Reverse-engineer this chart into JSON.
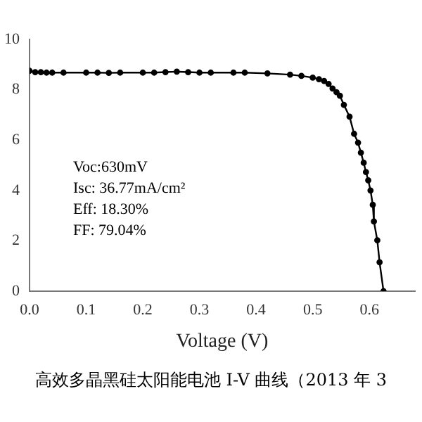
{
  "chart_data": {
    "type": "line",
    "xlabel": "Voltage (V)",
    "annotations": [
      "Voc:630mV",
      "Isc: 36.77mA/cm²",
      "Eff: 18.30%",
      "FF: 79.04%",
      "高效多晶黑硅太阳能电池 I-V 曲线（2013 年 3"
    ],
    "x": [
      0.0,
      0.01,
      0.02,
      0.03,
      0.04,
      0.06,
      0.1,
      0.12,
      0.14,
      0.16,
      0.2,
      0.22,
      0.24,
      0.26,
      0.28,
      0.3,
      0.32,
      0.36,
      0.38,
      0.42,
      0.46,
      0.48,
      0.5,
      0.511,
      0.52,
      0.528,
      0.535,
      0.542,
      0.548,
      0.555,
      0.565,
      0.573,
      0.58,
      0.585,
      0.59,
      0.594,
      0.598,
      0.602,
      0.606,
      0.608,
      0.614,
      0.618,
      0.625
    ],
    "series": [
      {
        "color": "#000000",
        "values": [
          8.75,
          8.7,
          8.7,
          8.68,
          8.68,
          8.68,
          8.68,
          8.68,
          8.67,
          8.68,
          8.68,
          8.68,
          8.7,
          8.72,
          8.7,
          8.68,
          8.68,
          8.68,
          8.68,
          8.65,
          8.6,
          8.55,
          8.48,
          8.42,
          8.35,
          8.23,
          8.05,
          7.9,
          7.76,
          7.4,
          6.93,
          6.25,
          5.9,
          5.5,
          5.1,
          4.73,
          4.4,
          4.0,
          3.43,
          2.77,
          2.02,
          1.15,
          0.0
        ]
      }
    ],
    "xlim": [
      0,
      0.68
    ],
    "xticks": [
      {
        "value": 0,
        "label": "0.0"
      },
      {
        "value": 0.1,
        "label": "0.1"
      },
      {
        "value": 0.2,
        "label": "0.2"
      },
      {
        "value": 0.3,
        "label": "0.3"
      },
      {
        "value": 0.4,
        "label": "0.4"
      },
      {
        "value": 0.5,
        "label": "0.5"
      },
      {
        "value": 0.6,
        "label": "0.6"
      }
    ],
    "ylim": [
      0,
      10
    ],
    "yticks": [
      0,
      2,
      4,
      6,
      8,
      10
    ],
    "marker": "circle",
    "line_style": "solid",
    "grid": false,
    "legend": false
  }
}
